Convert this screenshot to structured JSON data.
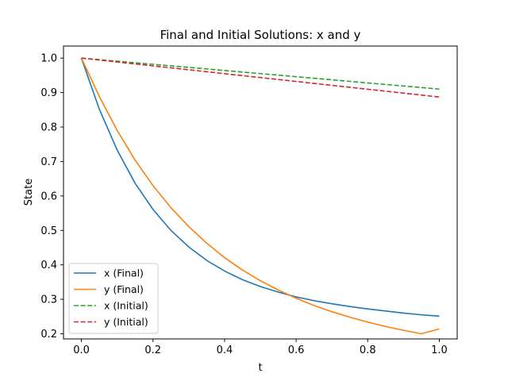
{
  "chart_data": {
    "type": "line",
    "title": "Final and Initial Solutions: x and y",
    "xlabel": "t",
    "ylabel": "State",
    "xlim": [
      -0.05,
      1.05
    ],
    "ylim": [
      0.185,
      1.035
    ],
    "xticks": [
      "0.0",
      "0.2",
      "0.4",
      "0.6",
      "0.8",
      "1.0"
    ],
    "yticks": [
      "0.2",
      "0.3",
      "0.4",
      "0.5",
      "0.6",
      "0.7",
      "0.8",
      "0.9",
      "1.0"
    ],
    "grid": false,
    "legend": "lower-left",
    "x": [
      0.0,
      0.05,
      0.1,
      0.15,
      0.2,
      0.25,
      0.3,
      0.35,
      0.4,
      0.45,
      0.5,
      0.55,
      0.6,
      0.65,
      0.7,
      0.75,
      0.8,
      0.85,
      0.9,
      0.95,
      1.0
    ],
    "series": [
      {
        "name": "x (Final)",
        "color": "#1f77b4",
        "dash": "solid",
        "values": [
          1.0,
          0.852,
          0.733,
          0.637,
          0.561,
          0.5,
          0.452,
          0.413,
          0.382,
          0.357,
          0.337,
          0.321,
          0.307,
          0.296,
          0.287,
          0.279,
          0.272,
          0.266,
          0.26,
          0.255,
          0.251
        ]
      },
      {
        "name": "y (Final)",
        "color": "#ff7f0e",
        "dash": "solid",
        "values": [
          1.0,
          0.889,
          0.79,
          0.704,
          0.63,
          0.566,
          0.511,
          0.463,
          0.421,
          0.385,
          0.354,
          0.327,
          0.303,
          0.282,
          0.264,
          0.248,
          0.234,
          0.221,
          0.21,
          0.2,
          0.214
        ]
      },
      {
        "name": "x (Initial)",
        "color": "#2ca02c",
        "dash": "dashed",
        "values": [
          1.0,
          0.9955,
          0.991,
          0.9865,
          0.982,
          0.9775,
          0.973,
          0.9685,
          0.964,
          0.9595,
          0.955,
          0.9505,
          0.946,
          0.9415,
          0.937,
          0.9325,
          0.928,
          0.9235,
          0.919,
          0.9145,
          0.91
        ]
      },
      {
        "name": "y (Initial)",
        "color": "#d62728",
        "dash": "dashed",
        "values": [
          1.0,
          0.9944,
          0.9887,
          0.9831,
          0.9774,
          0.9718,
          0.9661,
          0.9605,
          0.9548,
          0.9492,
          0.9435,
          0.9379,
          0.9322,
          0.9266,
          0.9209,
          0.9153,
          0.9096,
          0.904,
          0.8983,
          0.8927,
          0.887
        ]
      }
    ]
  }
}
